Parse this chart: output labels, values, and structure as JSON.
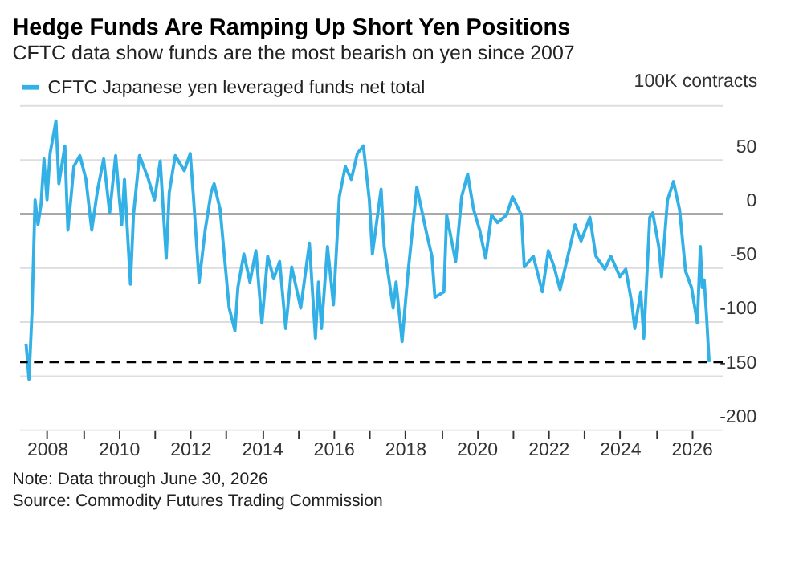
{
  "chart_data": {
    "type": "line",
    "title": "Hedge Funds Are Ramping Up Short Yen Positions",
    "subtitle": "CFTC data show funds are the most bearish on yen since 2007",
    "ylabel": "100K contracts",
    "x": [
      "2007-06",
      "2007-07",
      "2007-08",
      "2007-09",
      "2007-10",
      "2007-11",
      "2007-12",
      "2008-01",
      "2008-02",
      "2008-04",
      "2008-05",
      "2008-07",
      "2008-08",
      "2008-10",
      "2008-12",
      "2009-02",
      "2009-04",
      "2009-06",
      "2009-08",
      "2009-10",
      "2009-12",
      "2010-02",
      "2010-03",
      "2010-05",
      "2010-06",
      "2010-08",
      "2010-11",
      "2011-01",
      "2011-03",
      "2011-05",
      "2011-06",
      "2011-08",
      "2011-11",
      "2012-01",
      "2012-02",
      "2012-04",
      "2012-06",
      "2012-08",
      "2012-09",
      "2012-11",
      "2013-02",
      "2013-04",
      "2013-05",
      "2013-07",
      "2013-09",
      "2013-11",
      "2014-01",
      "2014-03",
      "2014-05",
      "2014-07",
      "2014-09",
      "2014-11",
      "2015-02",
      "2015-05",
      "2015-07",
      "2015-08",
      "2015-09",
      "2015-11",
      "2016-01",
      "2016-03",
      "2016-05",
      "2016-07",
      "2016-09",
      "2016-11",
      "2017-01",
      "2017-02",
      "2017-05",
      "2017-06",
      "2017-09",
      "2017-10",
      "2017-12",
      "2018-02",
      "2018-05",
      "2018-08",
      "2018-10",
      "2018-11",
      "2019-02",
      "2019-03",
      "2019-06",
      "2019-08",
      "2019-10",
      "2019-12",
      "2020-02",
      "2020-04",
      "2020-06",
      "2020-08",
      "2020-11",
      "2021-01",
      "2021-04",
      "2021-05",
      "2021-08",
      "2021-11",
      "2022-01",
      "2022-03",
      "2022-05",
      "2022-08",
      "2022-10",
      "2022-12",
      "2023-03",
      "2023-05",
      "2023-08",
      "2023-10",
      "2024-01",
      "2024-03",
      "2024-05",
      "2024-06",
      "2024-08",
      "2024-09",
      "2024-11",
      "2024-12",
      "2025-02",
      "2025-03",
      "2025-05",
      "2025-07",
      "2025-09",
      "2025-11",
      "2026-01",
      "2026-03",
      "2026-04-01",
      "2026-04-20",
      "2026-05-10",
      "2026-06-01",
      "2026-06-30"
    ],
    "series": [
      {
        "name": "CFTC Japanese yen leveraged funds net total",
        "color": "#33b0e6",
        "values": [
          -120,
          -153,
          -91,
          13,
          -10,
          9,
          51,
          13,
          56,
          86,
          28,
          63,
          -15,
          44,
          54,
          32,
          -15,
          23,
          51,
          1,
          54,
          -10,
          32,
          -65,
          -1,
          54,
          32,
          13,
          49,
          -41,
          20,
          54,
          40,
          56,
          18,
          -63,
          -15,
          20,
          28,
          4,
          -87,
          -108,
          -68,
          -37,
          -63,
          -34,
          -101,
          -39,
          -60,
          -44,
          -106,
          -49,
          -87,
          -27,
          -115,
          -63,
          -106,
          -30,
          -84,
          16,
          44,
          32,
          56,
          63,
          13,
          -37,
          23,
          -30,
          -87,
          -63,
          -118,
          -53,
          25,
          -15,
          -39,
          -77,
          -72,
          -1,
          -44,
          16,
          37,
          4,
          -15,
          -41,
          -1,
          -8,
          -1,
          16,
          -1,
          -49,
          -39,
          -72,
          -34,
          -49,
          -70,
          -34,
          -10,
          -25,
          -3,
          -39,
          -51,
          -39,
          -58,
          -51,
          -82,
          -106,
          -72,
          -115,
          -3,
          1,
          -30,
          -58,
          13,
          30,
          4,
          -53,
          -68,
          -101,
          -30,
          -68,
          -61,
          -91,
          -137
        ]
      }
    ],
    "xlim": [
      "2007-04",
      "2026-11-15"
    ],
    "xticks": [
      {
        "value": "2008",
        "label": "2008"
      },
      {
        "value": "2009",
        "label": null
      },
      {
        "value": "2010",
        "label": "2010"
      },
      {
        "value": "2011",
        "label": null
      },
      {
        "value": "2012",
        "label": "2012"
      },
      {
        "value": "2013",
        "label": null
      },
      {
        "value": "2014",
        "label": "2014"
      },
      {
        "value": "2015",
        "label": null
      },
      {
        "value": "2016",
        "label": "2016"
      },
      {
        "value": "2017",
        "label": null
      },
      {
        "value": "2018",
        "label": "2018"
      },
      {
        "value": "2019",
        "label": null
      },
      {
        "value": "2020",
        "label": "2020"
      },
      {
        "value": "2021",
        "label": null
      },
      {
        "value": "2022",
        "label": "2022"
      },
      {
        "value": "2023",
        "label": null
      },
      {
        "value": "2024",
        "label": "2024"
      },
      {
        "value": "2025",
        "label": null
      },
      {
        "value": "2026",
        "label": "2026"
      }
    ],
    "ylim": [
      -200,
      100
    ],
    "yticks": [
      {
        "value": 100,
        "label": null
      },
      50,
      0,
      -50,
      -100,
      -150,
      -200
    ],
    "ref_lines": [
      {
        "axis": "y",
        "value": -137,
        "color": "#000000",
        "line_style": "dashed"
      }
    ],
    "annotations": [
      "Note: Data through June 30, 2026",
      "Source: Commodity Futures Trading Commission"
    ],
    "grid": "y",
    "legend": "top left"
  }
}
